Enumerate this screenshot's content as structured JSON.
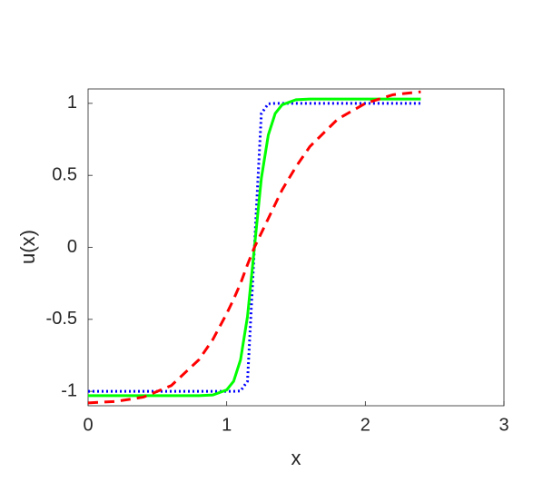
{
  "chart_data": {
    "type": "line",
    "xlabel": "x",
    "ylabel": "u(x)",
    "x": [
      0,
      0.2,
      0.4,
      0.6,
      0.8,
      0.9,
      1.0,
      1.05,
      1.1,
      1.15,
      1.2,
      1.25,
      1.3,
      1.35,
      1.4,
      1.5,
      1.6,
      1.8,
      2.0,
      2.2,
      2.4
    ],
    "series": [
      {
        "color": "#0000ff",
        "style": "dotted",
        "values": [
          -1,
          -1,
          -1,
          -1,
          -1,
          -1,
          -1,
          -1,
          -0.997,
          -0.93,
          0,
          0.93,
          0.997,
          1,
          1,
          1,
          1,
          1,
          1,
          1,
          1
        ]
      },
      {
        "color": "#00ff00",
        "style": "solid",
        "values": [
          -1.03,
          -1.03,
          -1.03,
          -1.03,
          -1.03,
          -1.025,
          -0.99,
          -0.93,
          -0.78,
          -0.48,
          0,
          0.48,
          0.78,
          0.93,
          0.99,
          1.025,
          1.03,
          1.03,
          1.03,
          1.03,
          1.03
        ]
      },
      {
        "color": "#ff0000",
        "style": "dashed",
        "values": [
          -1.08,
          -1.07,
          -1.04,
          -0.96,
          -0.78,
          -0.64,
          -0.46,
          -0.36,
          -0.25,
          -0.12,
          0,
          0.1,
          0.2,
          0.3,
          0.4,
          0.56,
          0.7,
          0.89,
          1.0,
          1.06,
          1.08
        ]
      }
    ],
    "xlim": [
      0,
      3
    ],
    "xticks": [
      0,
      1,
      2,
      3
    ],
    "ylim": [
      -1.1,
      1.1
    ],
    "yticks": [
      -1,
      -0.5,
      0,
      0.5,
      1
    ]
  }
}
